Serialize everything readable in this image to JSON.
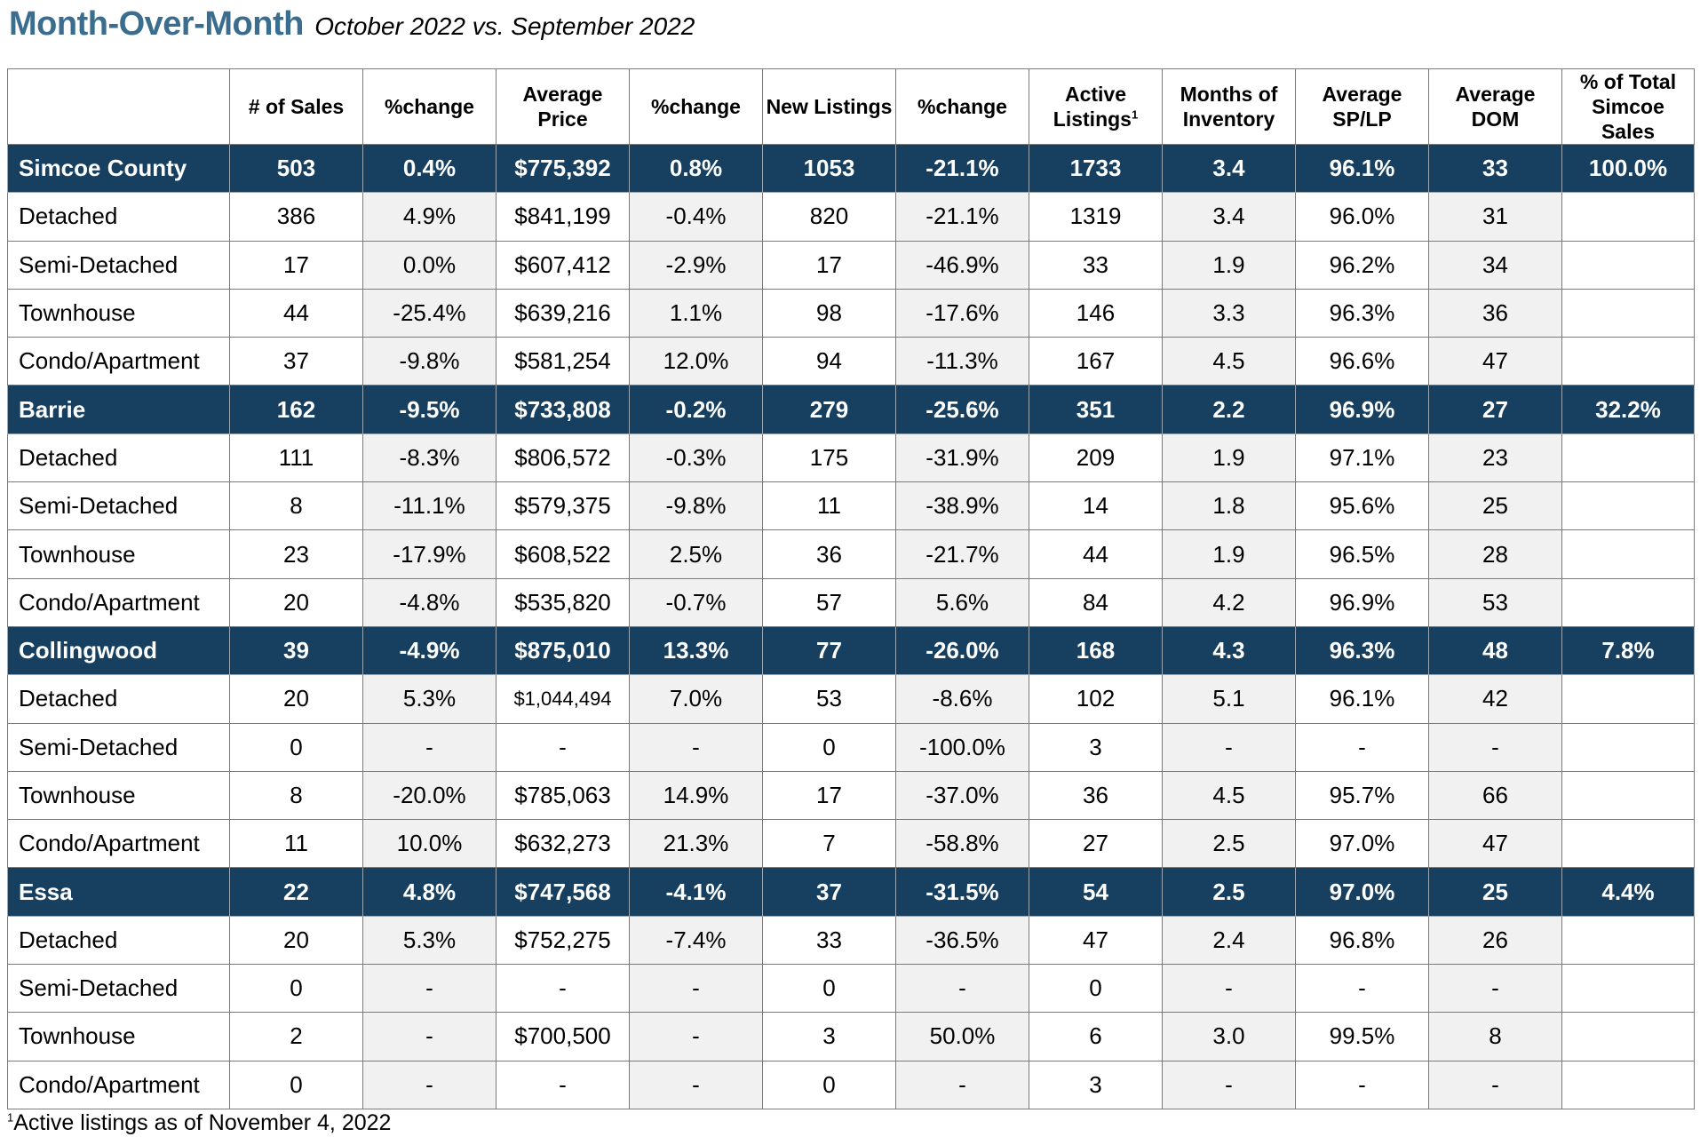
{
  "title": "Month-Over-Month",
  "subtitle": "October 2022 vs. September 2022",
  "columns": [
    "",
    "# of Sales",
    "%change",
    "Average Price",
    "%change",
    "New Listings",
    "%change",
    "Active Listings",
    "Months of Inventory",
    "Average SP/LP",
    "Average DOM",
    "% of Total Simcoe Sales"
  ],
  "active_listings_footnote_marker": "1",
  "rows": [
    {
      "type": "region",
      "cells": [
        "Simcoe County",
        "503",
        "0.4%",
        "$775,392",
        "0.8%",
        "1053",
        "-21.1%",
        "1733",
        "3.4",
        "96.1%",
        "33",
        "100.0%"
      ]
    },
    {
      "type": "sub",
      "cells": [
        "Detached",
        "386",
        "4.9%",
        "$841,199",
        "-0.4%",
        "820",
        "-21.1%",
        "1319",
        "3.4",
        "96.0%",
        "31",
        ""
      ]
    },
    {
      "type": "sub",
      "cells": [
        "Semi-Detached",
        "17",
        "0.0%",
        "$607,412",
        "-2.9%",
        "17",
        "-46.9%",
        "33",
        "1.9",
        "96.2%",
        "34",
        ""
      ]
    },
    {
      "type": "sub",
      "cells": [
        "Townhouse",
        "44",
        "-25.4%",
        "$639,216",
        "1.1%",
        "98",
        "-17.6%",
        "146",
        "3.3",
        "96.3%",
        "36",
        ""
      ]
    },
    {
      "type": "sub",
      "cells": [
        "Condo/Apartment",
        "37",
        "-9.8%",
        "$581,254",
        "12.0%",
        "94",
        "-11.3%",
        "167",
        "4.5",
        "96.6%",
        "47",
        ""
      ]
    },
    {
      "type": "region",
      "cells": [
        "Barrie",
        "162",
        "-9.5%",
        "$733,808",
        "-0.2%",
        "279",
        "-25.6%",
        "351",
        "2.2",
        "96.9%",
        "27",
        "32.2%"
      ]
    },
    {
      "type": "sub",
      "cells": [
        "Detached",
        "111",
        "-8.3%",
        "$806,572",
        "-0.3%",
        "175",
        "-31.9%",
        "209",
        "1.9",
        "97.1%",
        "23",
        ""
      ]
    },
    {
      "type": "sub",
      "cells": [
        "Semi-Detached",
        "8",
        "-11.1%",
        "$579,375",
        "-9.8%",
        "11",
        "-38.9%",
        "14",
        "1.8",
        "95.6%",
        "25",
        ""
      ]
    },
    {
      "type": "sub",
      "cells": [
        "Townhouse",
        "23",
        "-17.9%",
        "$608,522",
        "2.5%",
        "36",
        "-21.7%",
        "44",
        "1.9",
        "96.5%",
        "28",
        ""
      ]
    },
    {
      "type": "sub",
      "cells": [
        "Condo/Apartment",
        "20",
        "-4.8%",
        "$535,820",
        "-0.7%",
        "57",
        "5.6%",
        "84",
        "4.2",
        "96.9%",
        "53",
        ""
      ]
    },
    {
      "type": "region",
      "cells": [
        "Collingwood",
        "39",
        "-4.9%",
        "$875,010",
        "13.3%",
        "77",
        "-26.0%",
        "168",
        "4.3",
        "96.3%",
        "48",
        "7.8%"
      ]
    },
    {
      "type": "sub",
      "cells": [
        "Detached",
        "20",
        "5.3%",
        "$1,044,494",
        "7.0%",
        "53",
        "-8.6%",
        "102",
        "5.1",
        "96.1%",
        "42",
        ""
      ]
    },
    {
      "type": "sub",
      "cells": [
        "Semi-Detached",
        "0",
        "-",
        "-",
        "-",
        "0",
        "-100.0%",
        "3",
        "-",
        "-",
        "-",
        ""
      ]
    },
    {
      "type": "sub",
      "cells": [
        "Townhouse",
        "8",
        "-20.0%",
        "$785,063",
        "14.9%",
        "17",
        "-37.0%",
        "36",
        "4.5",
        "95.7%",
        "66",
        ""
      ]
    },
    {
      "type": "sub",
      "cells": [
        "Condo/Apartment",
        "11",
        "10.0%",
        "$632,273",
        "21.3%",
        "7",
        "-58.8%",
        "27",
        "2.5",
        "97.0%",
        "47",
        ""
      ]
    },
    {
      "type": "region",
      "cells": [
        "Essa",
        "22",
        "4.8%",
        "$747,568",
        "-4.1%",
        "37",
        "-31.5%",
        "54",
        "2.5",
        "97.0%",
        "25",
        "4.4%"
      ]
    },
    {
      "type": "sub",
      "cells": [
        "Detached",
        "20",
        "5.3%",
        "$752,275",
        "-7.4%",
        "33",
        "-36.5%",
        "47",
        "2.4",
        "96.8%",
        "26",
        ""
      ]
    },
    {
      "type": "sub",
      "cells": [
        "Semi-Detached",
        "0",
        "-",
        "-",
        "-",
        "0",
        "-",
        "0",
        "-",
        "-",
        "-",
        ""
      ]
    },
    {
      "type": "sub",
      "cells": [
        "Townhouse",
        "2",
        "-",
        "$700,500",
        "-",
        "3",
        "50.0%",
        "6",
        "3.0",
        "99.5%",
        "8",
        ""
      ]
    },
    {
      "type": "sub",
      "cells": [
        "Condo/Apartment",
        "0",
        "-",
        "-",
        "-",
        "0",
        "-",
        "3",
        "-",
        "-",
        "-",
        ""
      ]
    }
  ],
  "footnote": {
    "marker": "1",
    "text": "Active listings as of November 4, 2022"
  }
}
